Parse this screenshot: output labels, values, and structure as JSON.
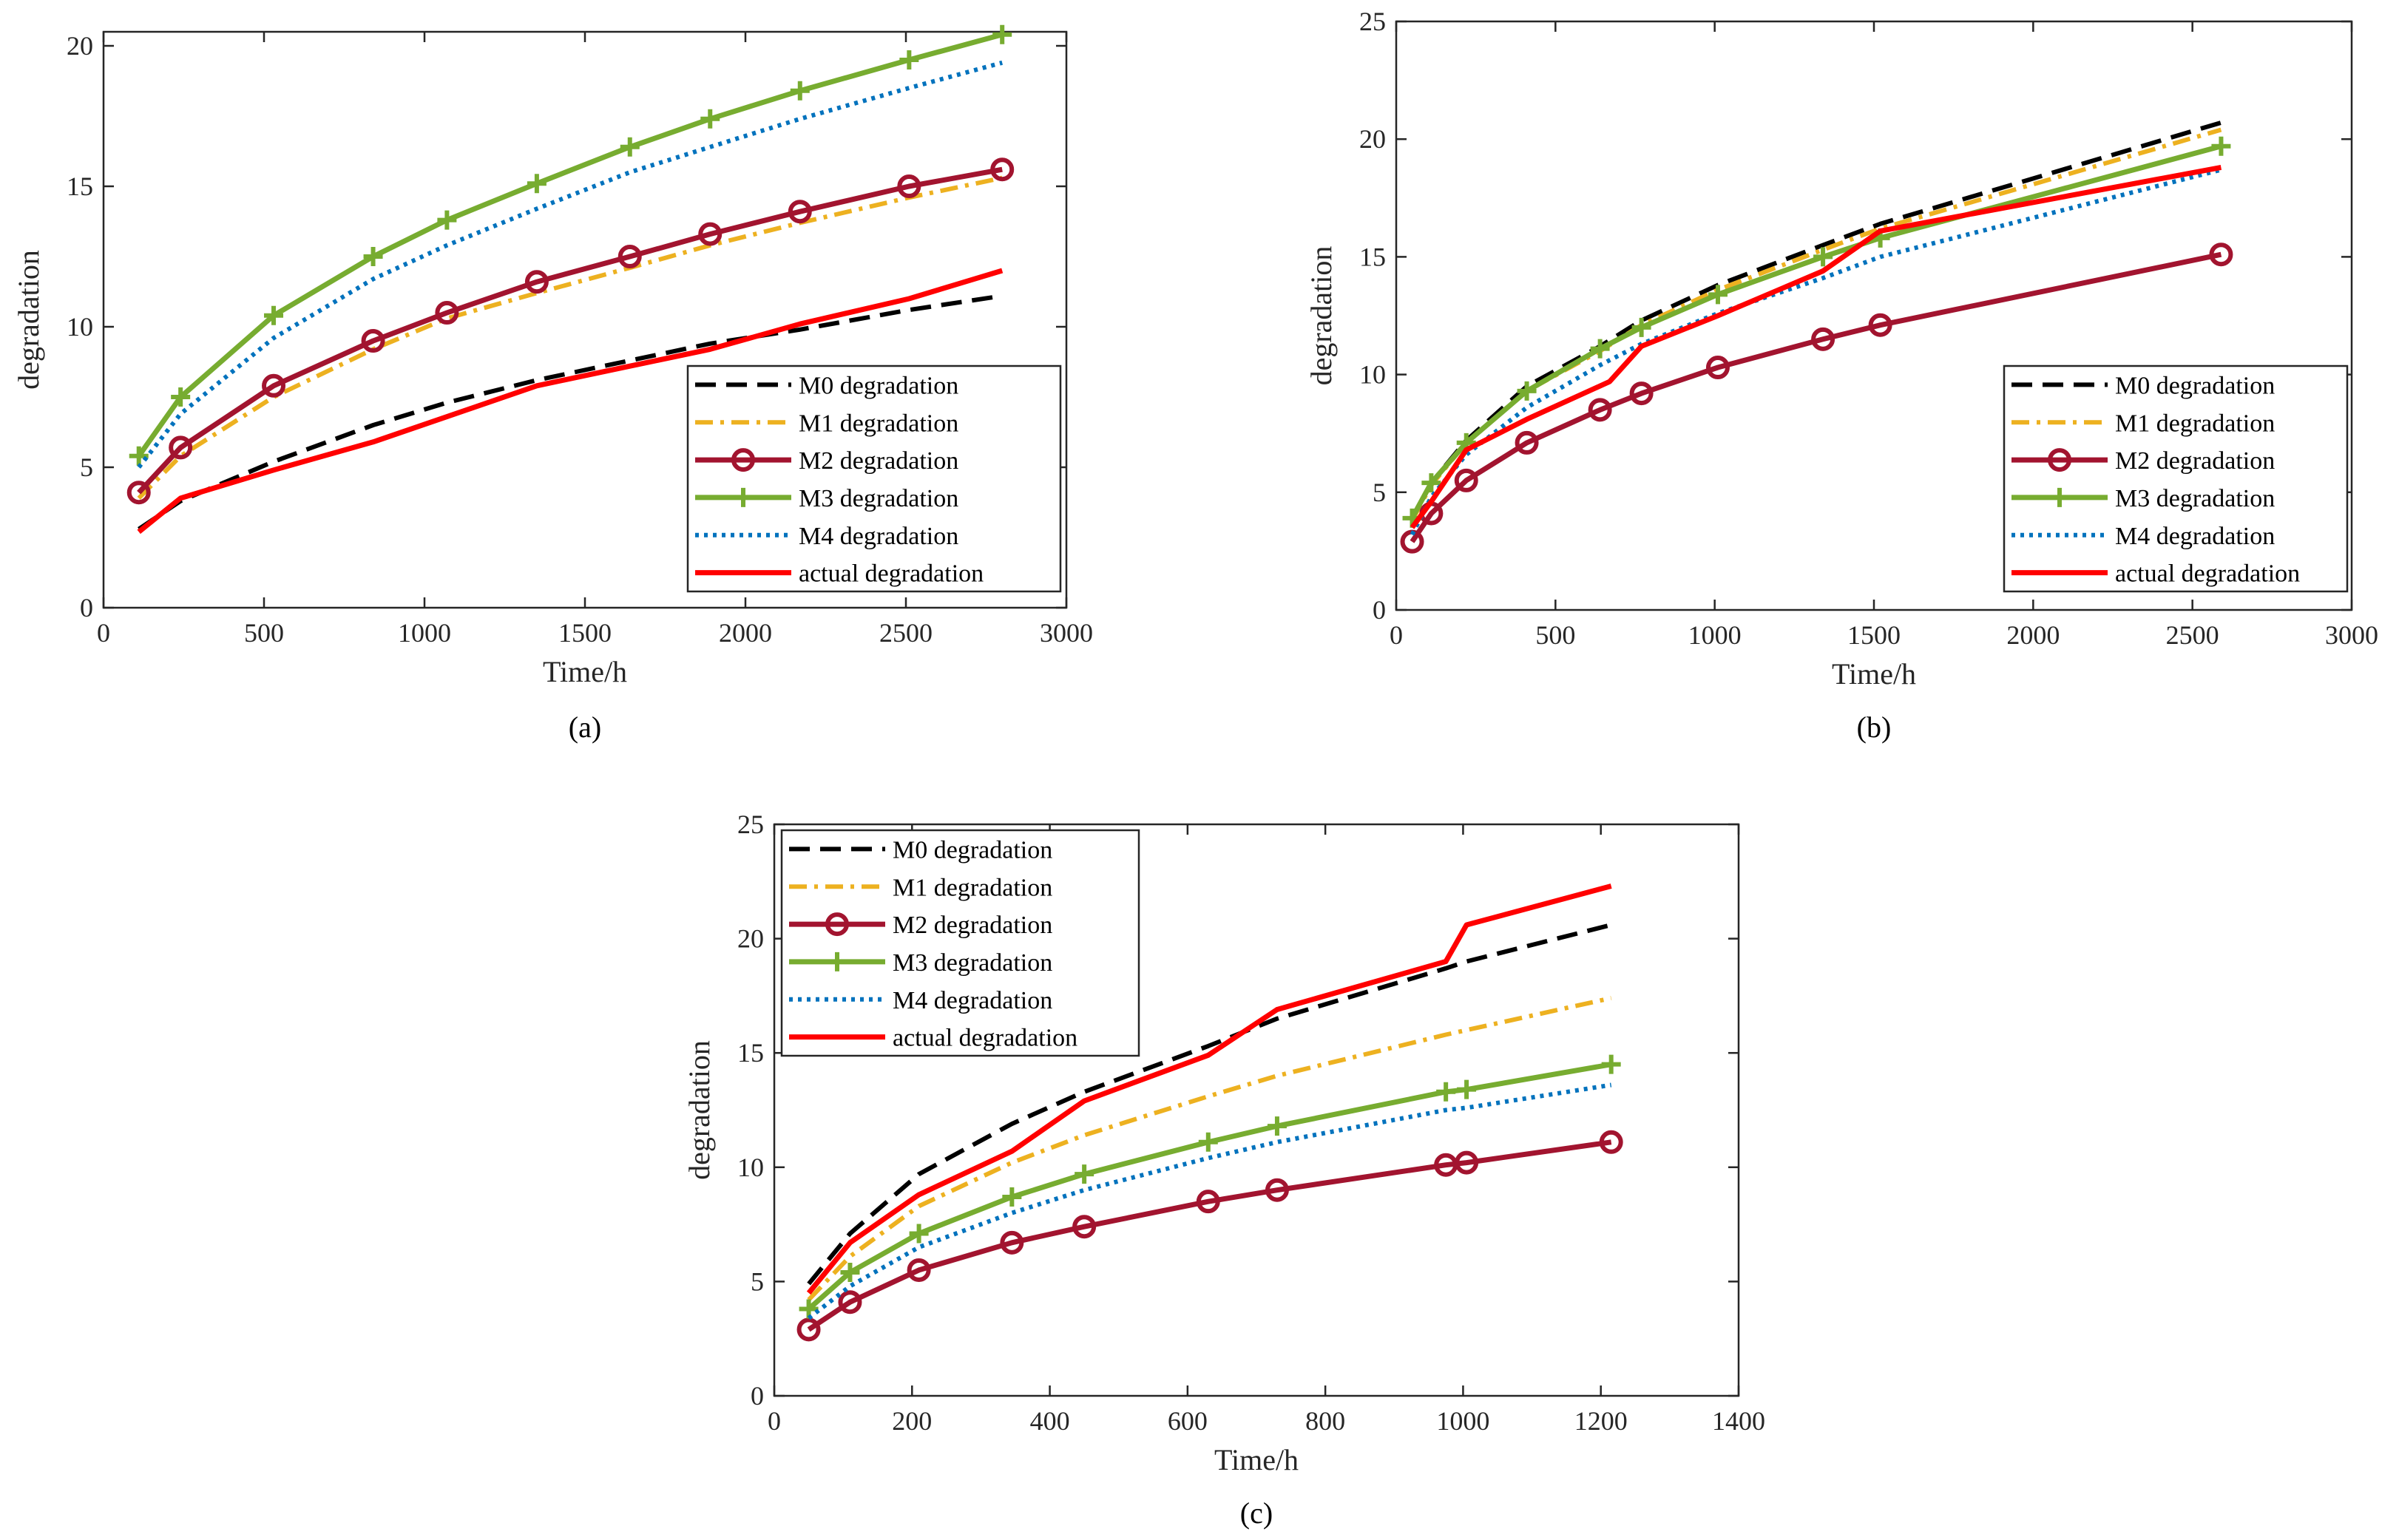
{
  "chart_data": [
    {
      "type": "line",
      "id": "a",
      "caption": "(a)",
      "xlabel": "Time/h",
      "ylabel": "degradation",
      "xlim": [
        0,
        3000
      ],
      "ylim": [
        0,
        20.5
      ],
      "xticks": [
        0,
        500,
        1000,
        1500,
        2000,
        2500,
        3000
      ],
      "yticks": [
        0,
        5,
        10,
        15,
        20
      ],
      "legend_position": "bottom-right",
      "series": [
        {
          "name": "M0 degradation",
          "style": "dashed",
          "color": "#000000",
          "x": [
            110,
            240,
            530,
            840,
            1070,
            1350,
            1640,
            1890,
            2170,
            2510,
            2800
          ],
          "y": [
            2.8,
            3.8,
            5.2,
            6.5,
            7.3,
            8.1,
            8.8,
            9.4,
            9.9,
            10.6,
            11.1
          ]
        },
        {
          "name": "M1 degradation",
          "style": "dashdot",
          "color": "#EDB120",
          "x": [
            110,
            240,
            530,
            840,
            1070,
            1350,
            1640,
            1890,
            2170,
            2510,
            2800
          ],
          "y": [
            3.9,
            5.4,
            7.5,
            9.2,
            10.3,
            11.2,
            12.1,
            12.9,
            13.7,
            14.6,
            15.3
          ]
        },
        {
          "name": "M2 degradation",
          "style": "circle",
          "color": "#A2142F",
          "x": [
            110,
            240,
            530,
            840,
            1070,
            1350,
            1640,
            1890,
            2170,
            2510,
            2800
          ],
          "y": [
            4.1,
            5.7,
            7.9,
            9.5,
            10.5,
            11.6,
            12.5,
            13.3,
            14.1,
            15.0,
            15.6
          ]
        },
        {
          "name": "M3 degradation",
          "style": "plus",
          "color": "#77AC30",
          "x": [
            110,
            240,
            530,
            840,
            1070,
            1350,
            1640,
            1890,
            2170,
            2510,
            2800
          ],
          "y": [
            5.4,
            7.5,
            10.4,
            12.5,
            13.8,
            15.1,
            16.4,
            17.4,
            18.4,
            19.5,
            20.4
          ]
        },
        {
          "name": "M4 degradation",
          "style": "dotted",
          "color": "#0072BD",
          "x": [
            110,
            240,
            530,
            840,
            1070,
            1350,
            1640,
            1890,
            2170,
            2510,
            2800
          ],
          "y": [
            5.0,
            6.9,
            9.6,
            11.7,
            12.9,
            14.2,
            15.5,
            16.4,
            17.4,
            18.5,
            19.4
          ]
        },
        {
          "name": "actual degradation",
          "style": "solid",
          "color": "#FF0000",
          "x": [
            110,
            240,
            530,
            840,
            1070,
            1350,
            1640,
            1890,
            2170,
            2510,
            2800
          ],
          "y": [
            2.7,
            3.9,
            4.9,
            5.9,
            6.8,
            7.9,
            8.6,
            9.2,
            10.1,
            11.0,
            12.0
          ]
        }
      ]
    },
    {
      "type": "line",
      "id": "b",
      "caption": "(b)",
      "xlabel": "Time/h",
      "ylabel": "degradation",
      "xlim": [
        0,
        3000
      ],
      "ylim": [
        0,
        25
      ],
      "xticks": [
        0,
        500,
        1000,
        1500,
        2000,
        2500,
        3000
      ],
      "yticks": [
        0,
        5,
        10,
        15,
        20,
        25
      ],
      "legend_position": "bottom-right",
      "series": [
        {
          "name": "M0 degradation",
          "style": "dashed",
          "color": "#000000",
          "x": [
            50,
            110,
            220,
            410,
            640,
            770,
            1010,
            1340,
            1520,
            2590
          ],
          "y": [
            3.9,
            5.4,
            7.2,
            9.5,
            11.2,
            12.3,
            13.8,
            15.5,
            16.4,
            20.7
          ]
        },
        {
          "name": "M1 degradation",
          "style": "dashdot",
          "color": "#EDB120",
          "x": [
            50,
            110,
            220,
            410,
            640,
            770,
            1010,
            1340,
            1520,
            2590
          ],
          "y": [
            3.8,
            5.3,
            7.1,
            9.3,
            11.0,
            12.1,
            13.6,
            15.3,
            16.2,
            20.4
          ]
        },
        {
          "name": "M2 degradation",
          "style": "circle",
          "color": "#A2142F",
          "x": [
            50,
            110,
            220,
            410,
            640,
            770,
            1010,
            1340,
            1520,
            2590
          ],
          "y": [
            2.9,
            4.1,
            5.5,
            7.1,
            8.5,
            9.2,
            10.3,
            11.5,
            12.1,
            15.1
          ]
        },
        {
          "name": "M3 degradation",
          "style": "plus",
          "color": "#77AC30",
          "x": [
            50,
            110,
            220,
            410,
            640,
            770,
            1010,
            1340,
            1520,
            2590
          ],
          "y": [
            3.9,
            5.4,
            7.1,
            9.3,
            11.1,
            12.0,
            13.4,
            15.0,
            15.8,
            19.7
          ]
        },
        {
          "name": "M4 degradation",
          "style": "dotted",
          "color": "#0072BD",
          "x": [
            50,
            110,
            220,
            410,
            640,
            770,
            1010,
            1340,
            1520,
            2590
          ],
          "y": [
            3.2,
            4.8,
            6.6,
            8.6,
            10.4,
            11.3,
            12.6,
            14.1,
            15.0,
            18.7
          ]
        },
        {
          "name": "actual degradation",
          "style": "solid",
          "color": "#FF0000",
          "x": [
            50,
            110,
            220,
            410,
            670,
            770,
            1010,
            1340,
            1520,
            2590
          ],
          "y": [
            3.5,
            4.6,
            6.8,
            8.1,
            9.7,
            11.2,
            12.5,
            14.4,
            16.1,
            18.8
          ]
        }
      ]
    },
    {
      "type": "line",
      "id": "c",
      "caption": "(c)",
      "xlabel": "Time/h",
      "ylabel": "degradation",
      "xlim": [
        0,
        1400
      ],
      "ylim": [
        0,
        25
      ],
      "xticks": [
        0,
        200,
        400,
        600,
        800,
        1000,
        1200,
        1400
      ],
      "yticks": [
        0,
        5,
        10,
        15,
        20,
        25
      ],
      "legend_position": "top-left",
      "series": [
        {
          "name": "M0 degradation",
          "style": "dashed",
          "color": "#000000",
          "x": [
            50,
            110,
            210,
            345,
            450,
            630,
            730,
            975,
            1005,
            1215
          ],
          "y": [
            4.9,
            7.1,
            9.7,
            11.9,
            13.3,
            15.3,
            16.5,
            18.7,
            19.0,
            20.6
          ]
        },
        {
          "name": "M1 degradation",
          "style": "dashdot",
          "color": "#EDB120",
          "x": [
            50,
            110,
            210,
            345,
            450,
            630,
            730,
            975,
            1005,
            1215
          ],
          "y": [
            4.2,
            6.1,
            8.3,
            10.2,
            11.4,
            13.1,
            14.0,
            15.8,
            16.0,
            17.4
          ]
        },
        {
          "name": "M2 degradation",
          "style": "circle",
          "color": "#A2142F",
          "x": [
            50,
            110,
            210,
            345,
            450,
            630,
            730,
            975,
            1005,
            1215
          ],
          "y": [
            2.9,
            4.1,
            5.5,
            6.7,
            7.4,
            8.5,
            9.0,
            10.1,
            10.2,
            11.1
          ]
        },
        {
          "name": "M3 degradation",
          "style": "plus",
          "color": "#77AC30",
          "x": [
            50,
            110,
            210,
            345,
            450,
            630,
            730,
            975,
            1005,
            1215
          ],
          "y": [
            3.8,
            5.4,
            7.1,
            8.7,
            9.7,
            11.1,
            11.8,
            13.3,
            13.4,
            14.5
          ]
        },
        {
          "name": "M4 degradation",
          "style": "dotted",
          "color": "#0072BD",
          "x": [
            50,
            110,
            210,
            345,
            450,
            630,
            730,
            975,
            1005,
            1215
          ],
          "y": [
            3.4,
            4.8,
            6.5,
            8.0,
            9.0,
            10.4,
            11.1,
            12.5,
            12.6,
            13.6
          ]
        },
        {
          "name": "actual degradation",
          "style": "solid",
          "color": "#FF0000",
          "x": [
            50,
            110,
            210,
            345,
            450,
            630,
            730,
            975,
            1005,
            1215
          ],
          "y": [
            4.5,
            6.7,
            8.8,
            10.7,
            12.9,
            14.9,
            16.9,
            19.0,
            20.6,
            22.3
          ]
        }
      ]
    }
  ]
}
